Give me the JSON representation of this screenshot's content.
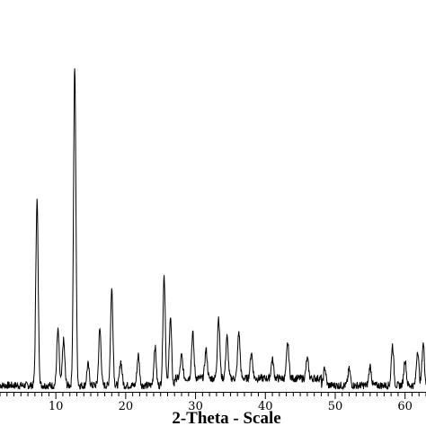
{
  "chart_data": {
    "type": "line",
    "title": "",
    "xlabel": "2-Theta - Scale",
    "ylabel": "",
    "xlim": [
      2,
      63
    ],
    "ylim": [
      0,
      100
    ],
    "x_ticks": [
      10,
      20,
      30,
      40,
      50,
      60
    ],
    "x_tick_labels": [
      "10",
      "20",
      "30",
      "40",
      "50",
      "60"
    ],
    "grid": false,
    "legend": "none",
    "line_color": "#000000",
    "series": [
      {
        "peaks": [
          {
            "x": 7.3,
            "y": 57.5
          },
          {
            "x": 10.3,
            "y": 17.0
          },
          {
            "x": 11.1,
            "y": 14.0
          },
          {
            "x": 12.7,
            "y": 100.0
          },
          {
            "x": 14.6,
            "y": 6.5
          },
          {
            "x": 16.3,
            "y": 17.5
          },
          {
            "x": 18.0,
            "y": 30.0
          },
          {
            "x": 19.3,
            "y": 7.5
          },
          {
            "x": 21.8,
            "y": 9.5
          },
          {
            "x": 24.2,
            "y": 12.0
          },
          {
            "x": 25.5,
            "y": 34.0
          },
          {
            "x": 26.4,
            "y": 21.0
          },
          {
            "x": 28.0,
            "y": 7.0
          },
          {
            "x": 29.6,
            "y": 14.0
          },
          {
            "x": 31.5,
            "y": 9.0
          },
          {
            "x": 33.3,
            "y": 19.0
          },
          {
            "x": 34.5,
            "y": 13.0
          },
          {
            "x": 36.2,
            "y": 14.5
          },
          {
            "x": 38.0,
            "y": 8.0
          },
          {
            "x": 41.0,
            "y": 6.0
          },
          {
            "x": 43.2,
            "y": 11.0
          },
          {
            "x": 46.0,
            "y": 6.0
          },
          {
            "x": 48.5,
            "y": 5.5
          },
          {
            "x": 52.0,
            "y": 5.0
          },
          {
            "x": 55.0,
            "y": 6.0
          },
          {
            "x": 58.2,
            "y": 12.5
          },
          {
            "x": 60.0,
            "y": 8.0
          },
          {
            "x": 61.8,
            "y": 11.0
          },
          {
            "x": 62.6,
            "y": 13.0
          }
        ]
      }
    ]
  }
}
